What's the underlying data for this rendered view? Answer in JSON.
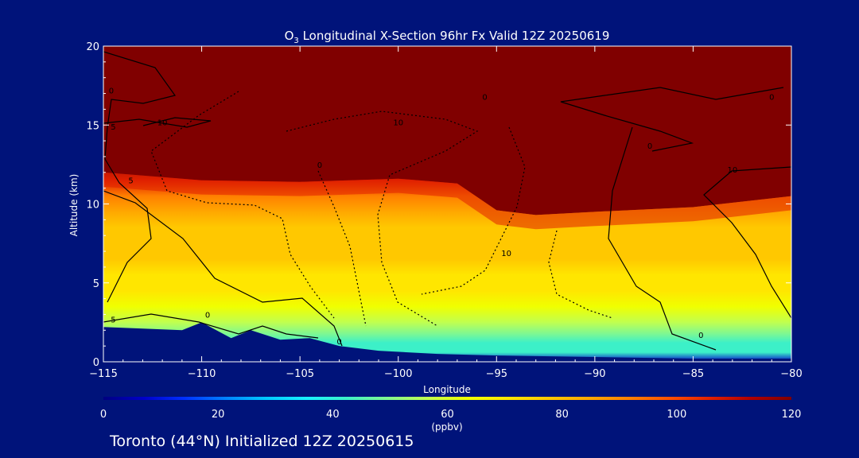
{
  "colors": {
    "background": "#00137a",
    "ozone_scale": [
      "#000080",
      "#0000c8",
      "#0030ff",
      "#0080ff",
      "#00c8ff",
      "#18f0ff",
      "#3cf0c8",
      "#80f890",
      "#c0ff50",
      "#f0ff00",
      "#ffe600",
      "#ffc800",
      "#ffa800",
      "#ff8000",
      "#ff5000",
      "#e02000",
      "#b00000",
      "#800000"
    ],
    "contour": "#000000"
  },
  "chart_data": {
    "type": "heatmap",
    "title_main": "O",
    "title_sub": "3",
    "title_rest": " Longitudinal X-Section 96hr  Fx Valid 12Z 20250619",
    "xlabel": "Longitude",
    "ylabel": "Altitude (km)",
    "xlim": [
      -115,
      -80
    ],
    "ylim": [
      0,
      20
    ],
    "x_ticks": [
      -115,
      -110,
      -105,
      -100,
      -95,
      -90,
      -85,
      -80
    ],
    "x_tick_labels": [
      "−115",
      "−110",
      "−105",
      "−100",
      "−95",
      "−90",
      "−85",
      "−80"
    ],
    "y_ticks": [
      0,
      5,
      10,
      15,
      20
    ],
    "y_tick_labels": [
      "0",
      "5",
      "10",
      "15",
      "20"
    ],
    "colorbar": {
      "range": [
        0,
        120
      ],
      "ticks": [
        0,
        20,
        40,
        60,
        80,
        100,
        120
      ],
      "tick_labels": [
        "0",
        "20",
        "40",
        "60",
        "80",
        "100",
        "120"
      ],
      "unit": "(ppbv)"
    },
    "units": "ppbv",
    "ozone_profile": {
      "note_altitudes_km": [
        0,
        0.6,
        1.2,
        1.8,
        2.5,
        3.5,
        4.5,
        5.5,
        6.5,
        7.5,
        8.5,
        9.5,
        10.5,
        11.5,
        12.5,
        14,
        16,
        20
      ],
      "values_ppbv": [
        5,
        40,
        45,
        50,
        55,
        62,
        68,
        73,
        76,
        78,
        80,
        84,
        92,
        104,
        118,
        120,
        120,
        120
      ]
    },
    "tropopause_km": [
      {
        "x": -115,
        "y": 12.0
      },
      {
        "x": -110,
        "y": 11.5
      },
      {
        "x": -105,
        "y": 11.4
      },
      {
        "x": -100,
        "y": 11.6
      },
      {
        "x": -97,
        "y": 11.3
      },
      {
        "x": -95,
        "y": 9.6
      },
      {
        "x": -93,
        "y": 9.3
      },
      {
        "x": -90,
        "y": 9.5
      },
      {
        "x": -85,
        "y": 9.8
      },
      {
        "x": -80,
        "y": 10.5
      }
    ],
    "terrain_km": [
      {
        "x": -115,
        "y": 2.2
      },
      {
        "x": -113,
        "y": 2.1
      },
      {
        "x": -111,
        "y": 2.0
      },
      {
        "x": -110,
        "y": 2.5
      },
      {
        "x": -108.5,
        "y": 1.5
      },
      {
        "x": -107.5,
        "y": 2.0
      },
      {
        "x": -106,
        "y": 1.4
      },
      {
        "x": -104.5,
        "y": 1.5
      },
      {
        "x": -103,
        "y": 1.0
      },
      {
        "x": -101,
        "y": 0.7
      },
      {
        "x": -98,
        "y": 0.5
      },
      {
        "x": -95,
        "y": 0.4
      },
      {
        "x": -90,
        "y": 0.3
      },
      {
        "x": -85,
        "y": 0.2
      },
      {
        "x": -80,
        "y": 0.2
      }
    ],
    "contour_labels": [
      {
        "text": "0",
        "x": -114.6,
        "y": 17
      },
      {
        "text": "5",
        "x": -114.5,
        "y": 14.7
      },
      {
        "text": "10",
        "x": -112,
        "y": 15
      },
      {
        "text": "10",
        "x": -100,
        "y": 15
      },
      {
        "text": "0",
        "x": -95.6,
        "y": 16.6
      },
      {
        "text": "0",
        "x": -104,
        "y": 12.3
      },
      {
        "text": "5",
        "x": -113.6,
        "y": 11.3
      },
      {
        "text": "10",
        "x": -94.5,
        "y": 6.7
      },
      {
        "text": "0",
        "x": -87.2,
        "y": 13.5
      },
      {
        "text": "0",
        "x": -81,
        "y": 16.6
      },
      {
        "text": "10",
        "x": -83,
        "y": 12
      },
      {
        "text": "5",
        "x": -114.5,
        "y": 2.5
      },
      {
        "text": "0",
        "x": -109.7,
        "y": 2.8
      },
      {
        "text": "0",
        "x": -103,
        "y": 1.1
      },
      {
        "text": "0",
        "x": -84.6,
        "y": 1.5
      }
    ],
    "footer": "Toronto (44°N) Initialized 12Z 20250615"
  }
}
